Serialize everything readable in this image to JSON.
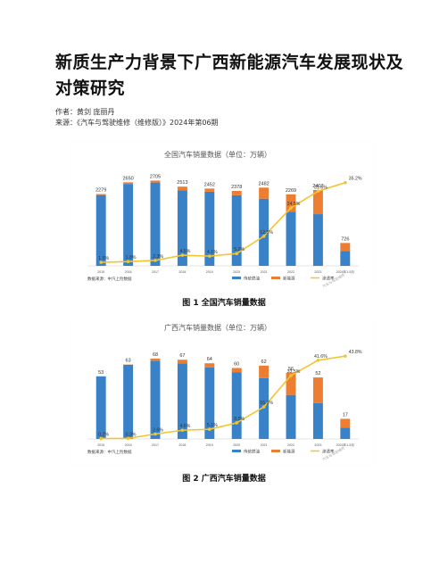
{
  "article": {
    "title": "新质生产力背景下广西新能源汽车发展现状及对策研究",
    "authors": "作者：黄剑   庞丽丹",
    "source": "来源：《汽车与驾驶维修（维修版）》2024年第06期"
  },
  "figures": [
    {
      "caption": "图 1  全国汽车销量数据",
      "watermark": "汽车与驾驶维修"
    },
    {
      "caption": "图 2  广西汽车销量数据",
      "watermark": "汽车与驾驶维修"
    }
  ],
  "colors": {
    "traditional": "#3a82c8",
    "nev": "#ed7d31",
    "penetration": "#f4c430"
  },
  "chart_data": [
    {
      "type": "bar",
      "title": "全国汽车销量数据（单位：万辆）",
      "categories": [
        "2015",
        "2016",
        "2017",
        "2018",
        "2019",
        "2020",
        "2021",
        "2022",
        "2023",
        "2024年1-5月"
      ],
      "totals": [
        2279,
        2650,
        2705,
        2513,
        2452,
        2378,
        2482,
        2269,
        2407,
        726
      ],
      "total_labels": [
        "2279",
        "2650",
        "2705",
        "2513",
        "2452",
        "2378",
        "2482",
        "2269",
        "2407",
        "726"
      ],
      "series": [
        {
          "name": "传统燃油",
          "values": [
            2245,
            2600,
            2643,
            2400,
            2352,
            2241,
            2130,
            1720,
            1640,
            470
          ]
        },
        {
          "name": "新能源",
          "values": [
            34,
            50,
            62,
            113,
            100,
            137,
            352,
            549,
            767,
            256
          ]
        },
        {
          "name": "渗透率",
          "values": [
            1.5,
            1.8,
            2.3,
            4.5,
            4.1,
            5.2,
            12.5,
            24.5,
            31.6,
            35.2
          ],
          "labels": [
            "1.5%",
            "1.8%",
            "2.3%",
            "4.5%",
            "4.1%",
            "5.2%",
            "12.5%",
            "24.5%",
            "31.6%",
            "35.2%"
          ]
        }
      ],
      "ylim": [
        0,
        3000
      ],
      "y2lim": [
        0,
        40
      ],
      "source_note": "数据来源：中汽上险数据"
    },
    {
      "type": "bar",
      "title": "广西汽车销量数据（单位：万辆）",
      "categories": [
        "2015",
        "2016",
        "2017",
        "2018",
        "2019",
        "2020",
        "2021",
        "2022",
        "2023",
        "2024年1-5月"
      ],
      "totals": [
        53,
        63,
        68,
        67,
        64,
        60,
        62,
        56,
        52,
        17
      ],
      "total_labels": [
        "53",
        "63",
        "68",
        "67",
        "64",
        "60",
        "62",
        "56",
        "52",
        "17"
      ],
      "series": [
        {
          "name": "传统燃油",
          "values": [
            52.9,
            62.8,
            66.2,
            64,
            60.5,
            56.5,
            51.5,
            37.2,
            30.4,
            9.5
          ]
        },
        {
          "name": "新能源",
          "values": [
            0.1,
            0.2,
            1.8,
            3,
            3.5,
            3.5,
            10.5,
            18.8,
            21.6,
            7.5
          ]
        },
        {
          "name": "渗透率",
          "values": [
            0.2,
            0.3,
            2.6,
            4.6,
            5.1,
            8.5,
            16.9,
            33.5,
            41.6,
            43.8
          ],
          "labels": [
            "0.2%",
            "0.3%",
            "2.6%",
            "4.6%",
            "5.1%",
            "8.5%",
            "16.9%",
            "33.5%",
            "41.6%",
            "43.8%"
          ]
        }
      ],
      "ylim": [
        0,
        80
      ],
      "y2lim": [
        0,
        50
      ],
      "source_note": "数据来源：中汽上险数据"
    }
  ]
}
